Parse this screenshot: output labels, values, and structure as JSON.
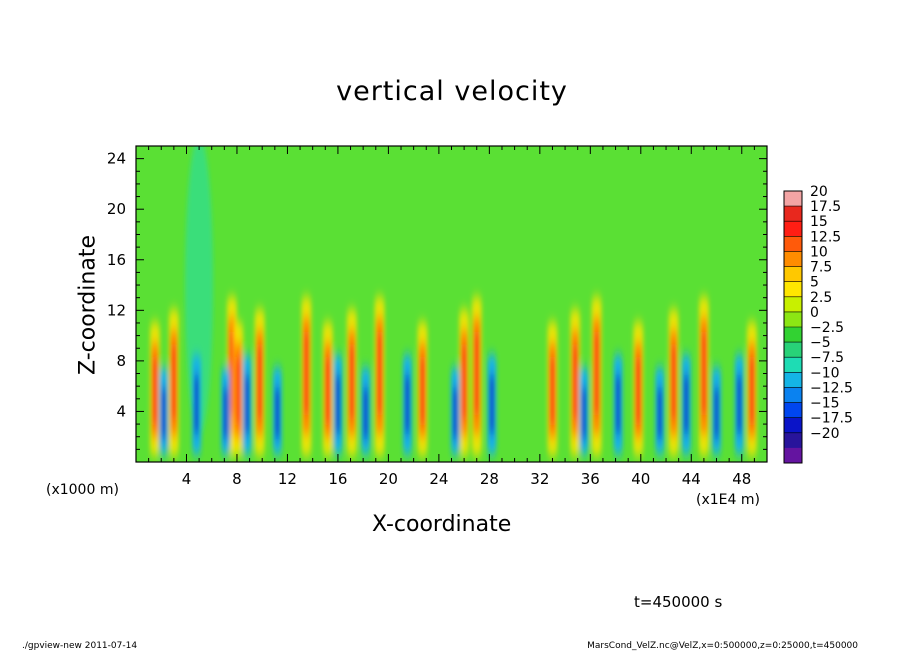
{
  "chart_data": {
    "type": "heatmap",
    "title": "vertical velocity",
    "xlabel": "X-coordinate",
    "ylabel": "Z-coordinate",
    "x_unit_label": "(x1000 m)",
    "x_unit_label_secondary": "(x1E4 m)",
    "xlim": [
      0,
      50
    ],
    "ylim": [
      0,
      25
    ],
    "x_ticks": [
      4,
      8,
      12,
      16,
      20,
      24,
      28,
      32,
      36,
      40,
      44,
      48
    ],
    "y_ticks": [
      4,
      8,
      12,
      16,
      20,
      24
    ],
    "colorbar": {
      "levels": [
        20,
        17.5,
        15,
        12.5,
        10,
        7.5,
        5,
        2.5,
        0,
        -2.5,
        -5,
        -7.5,
        -10,
        -12.5,
        -15,
        -17.5,
        -20
      ],
      "level_labels": [
        "20",
        "17.5",
        "15",
        "12.5",
        "10",
        "7.5",
        "5",
        "2.5",
        "0",
        "−2.5",
        "−5",
        "−7.5",
        "−10",
        "−12.5",
        "−15",
        "−17.5",
        "−20"
      ],
      "colors": [
        "#f3a4a4",
        "#e8281e",
        "#ff1e14",
        "#ff5a0a",
        "#ff8c00",
        "#ffc800",
        "#ffe600",
        "#c8f000",
        "#8ce614",
        "#32d232",
        "#28d278",
        "#1edcb4",
        "#14b4e6",
        "#0a82f0",
        "#0046f0",
        "#0a14c8",
        "#28149b",
        "#6414a0"
      ]
    },
    "updraft_columns_x": [
      1.5,
      3,
      7.6,
      8.1,
      9.8,
      13.5,
      15.2,
      17.1,
      19.3,
      22.7,
      26,
      27,
      33,
      34.8,
      36.5,
      39.8,
      42.6,
      45,
      48.8
    ],
    "downdraft_columns_x": [
      2.2,
      4.8,
      7.1,
      8.8,
      11.2,
      16,
      18.2,
      21.5,
      25.3,
      28.2,
      35.5,
      38.2,
      41.5,
      43.6,
      46,
      47.8
    ]
  },
  "annotations": {
    "time": "t=450000 s",
    "footer_left": "./gpview-new   2011-07-14",
    "footer_right": "MarsCond_VelZ.nc@VelZ,x=0:500000,z=0:25000,t=450000"
  }
}
